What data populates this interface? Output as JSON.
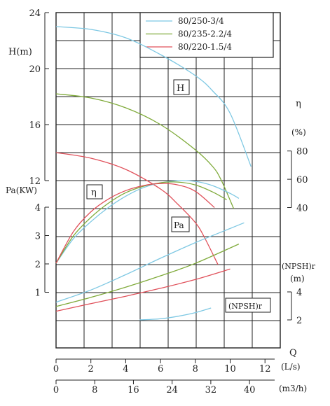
{
  "chart_data": {
    "type": "line",
    "title": "",
    "grid": true,
    "legend_position": "top-right",
    "series_colors": [
      "#7ec8e3",
      "#7faa3a",
      "#e0505a"
    ],
    "legend": [
      {
        "name": "80/250-3/4",
        "color": "#7ec8e3"
      },
      {
        "name": "80/235-2.2/4",
        "color": "#7faa3a"
      },
      {
        "name": "80/220-1.5/4",
        "color": "#e0505a"
      }
    ],
    "x_axis": {
      "label": "Q",
      "flow_ls": {
        "unit": "(L/s)",
        "ticks": [
          0,
          2,
          4,
          6,
          8,
          10,
          12
        ],
        "range": [
          0,
          12
        ]
      },
      "flow_m3h": {
        "unit": "(m3/h)",
        "ticks": [
          0,
          8,
          16,
          24,
          32,
          40
        ],
        "range": [
          0,
          43.2
        ]
      }
    },
    "head_axis": {
      "label": "H(m)",
      "ticks": [
        12,
        16,
        20,
        24
      ],
      "range": [
        8,
        28
      ]
    },
    "power_axis": {
      "label": "Pa(KW)",
      "ticks": [
        1,
        2,
        3,
        4
      ],
      "range": [
        0,
        5
      ]
    },
    "eff_axis": {
      "label": "η",
      "unit": "(%)",
      "ticks": [
        40,
        60,
        80
      ],
      "range": [
        40,
        80
      ]
    },
    "npsh_axis": {
      "label": "(NPSH)r",
      "unit": "(m)",
      "ticks": [
        2,
        4
      ],
      "range": [
        2,
        4
      ]
    },
    "annotations": {
      "head": "H",
      "eff": "η",
      "power": "Pa",
      "npsh": "(NPSH)r"
    },
    "head_curves": [
      {
        "name": "80/250-3/4",
        "x": [
          0,
          2,
          4,
          6,
          8,
          9,
          10,
          11.2
        ],
        "y": [
          23.0,
          22.8,
          22.2,
          21.0,
          19.5,
          18.4,
          16.8,
          13.0
        ]
      },
      {
        "name": "80/235-2.2/4",
        "x": [
          0,
          2,
          4,
          6,
          8,
          9,
          9.5,
          10.2
        ],
        "y": [
          18.2,
          17.9,
          17.2,
          16.0,
          14.2,
          13.0,
          12.0,
          10.0
        ]
      },
      {
        "name": "80/220-1.5/4",
        "x": [
          0,
          2,
          4,
          6,
          7,
          8,
          8.5,
          9.3
        ],
        "y": [
          14.0,
          13.6,
          12.8,
          11.4,
          10.3,
          9.0,
          8.0,
          6.0
        ]
      }
    ],
    "eff_curves": [
      {
        "name": "80/250-3/4",
        "x": [
          0,
          1,
          2,
          3,
          4,
          5,
          6,
          7,
          8,
          9,
          10,
          10.5
        ],
        "y": [
          0,
          18,
          30,
          40,
          48,
          54,
          57.5,
          59,
          58.5,
          55.5,
          50,
          46.5
        ]
      },
      {
        "name": "80/235-2.2/4",
        "x": [
          0,
          1,
          2,
          3,
          4,
          5,
          6,
          7,
          8,
          9,
          9.8
        ],
        "y": [
          0,
          20,
          33,
          43,
          50.5,
          55,
          57.5,
          58,
          56,
          51,
          45.5
        ]
      },
      {
        "name": "80/220-1.5/4",
        "x": [
          0,
          1,
          2,
          3,
          4,
          5,
          6,
          7,
          8,
          9.1
        ],
        "y": [
          0,
          23,
          37,
          46,
          52,
          55.5,
          57,
          56,
          51.5,
          40
        ]
      }
    ],
    "power_curves": [
      {
        "name": "80/250-3/4",
        "x": [
          0,
          2,
          4,
          6,
          8,
          10,
          10.8
        ],
        "y": [
          0.65,
          1.08,
          1.62,
          2.2,
          2.75,
          3.25,
          3.45
        ]
      },
      {
        "name": "80/235-2.2/4",
        "x": [
          0,
          2,
          4,
          6,
          8,
          10.5
        ],
        "y": [
          0.5,
          0.82,
          1.18,
          1.58,
          2.02,
          2.7
        ]
      },
      {
        "name": "80/220-1.5/4",
        "x": [
          0,
          2,
          4,
          6,
          8,
          10
        ],
        "y": [
          0.33,
          0.6,
          0.86,
          1.14,
          1.45,
          1.82
        ]
      }
    ],
    "npsh_curves": [
      {
        "name": "80/250-3/4",
        "x": [
          4.8,
          6,
          7,
          8,
          8.9
        ],
        "y": [
          2.0,
          2.08,
          2.26,
          2.52,
          2.85
        ]
      }
    ]
  }
}
